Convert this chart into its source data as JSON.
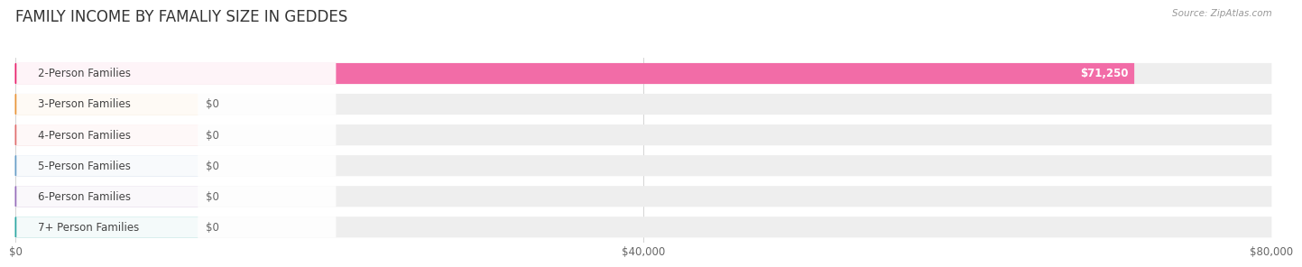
{
  "title": "FAMILY INCOME BY FAMALIY SIZE IN GEDDES",
  "source": "Source: ZipAtlas.com",
  "categories": [
    "2-Person Families",
    "3-Person Families",
    "4-Person Families",
    "5-Person Families",
    "6-Person Families",
    "7+ Person Families"
  ],
  "values": [
    71250,
    0,
    0,
    0,
    0,
    0
  ],
  "bar_colors": [
    "#f26ca7",
    "#f9c784",
    "#f4a9a8",
    "#a8c4e0",
    "#c3a8d1",
    "#72c8c4"
  ],
  "dot_colors": [
    "#e8246e",
    "#e8963c",
    "#e07070",
    "#6a9fc8",
    "#9870bc",
    "#30a8a4"
  ],
  "label_bg_color": "#ffffff",
  "xlim": [
    0,
    80000
  ],
  "xtick_labels": [
    "$0",
    "$40,000",
    "$80,000"
  ],
  "bg_color": "#ffffff",
  "bar_bg_color": "#eeeeee",
  "value_labels": [
    "$71,250",
    "$0",
    "$0",
    "$0",
    "$0",
    "$0"
  ],
  "title_fontsize": 12,
  "label_fontsize": 8.5,
  "source_fontsize": 7.5,
  "value_label_color_nonzero": "#ffffff",
  "value_label_color_zero": "#666666",
  "category_label_color": "#444444"
}
